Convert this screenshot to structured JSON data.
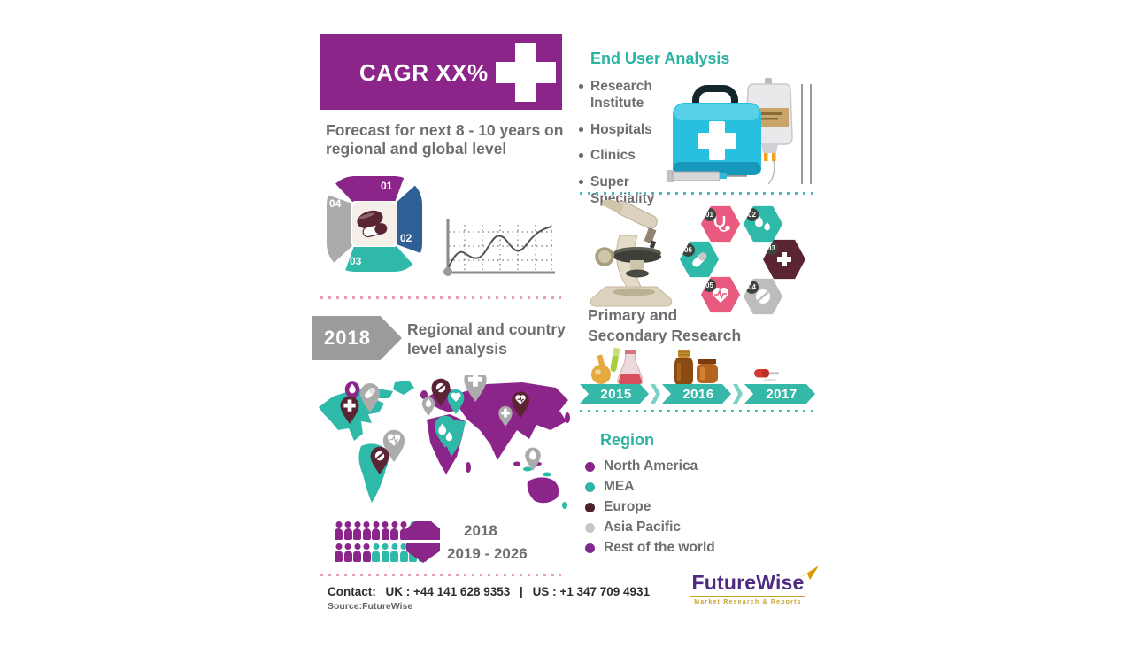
{
  "banner": {
    "text": "CAGR XX%"
  },
  "forecast": {
    "lines": [
      "Forecast for next 8 - 10  years on",
      "regional and global level"
    ]
  },
  "cycle": {
    "steps": [
      "01",
      "02",
      "03",
      "04"
    ]
  },
  "milestone": {
    "year": "2018",
    "label_lines": [
      "Regional and country",
      "level analysis"
    ]
  },
  "population": {
    "rows": [
      {
        "year": "2018",
        "purple": 8,
        "teal": 2
      },
      {
        "year": "2019 - 2026",
        "purple": 4,
        "teal": 6
      }
    ]
  },
  "contact": {
    "label": "Contact:",
    "uk": "UK : +44 141 628 9353",
    "divider": "|",
    "us": "US : +1 347 709 4931",
    "source": "Source:FutureWise"
  },
  "brand": {
    "name": "FutureWise",
    "tagline": "Market Research & Reports"
  },
  "end_user": {
    "title": "End User Analysis",
    "items": [
      "Research Institute",
      "Hospitals",
      "Clinics",
      "Super Speciality"
    ]
  },
  "research": {
    "title_lines": [
      "Primary and",
      "Secondary Research"
    ],
    "hexes": [
      {
        "num": "01",
        "icon": "stethoscope-icon",
        "color": "#E85A7E"
      },
      {
        "num": "02",
        "icon": "droplets-icon",
        "color": "#2FB9A9"
      },
      {
        "num": "03",
        "icon": "cross-icon",
        "color": "#5A2433"
      },
      {
        "num": "04",
        "icon": "tablet-icon",
        "color": "#BDBDBD"
      },
      {
        "num": "05",
        "icon": "heart-pulse-icon",
        "color": "#E85A7E"
      },
      {
        "num": "06",
        "icon": "capsule-icon",
        "color": "#2FB9A9"
      }
    ]
  },
  "timeline": {
    "years": [
      "2015",
      "2016",
      "2017"
    ]
  },
  "region": {
    "title": "Region",
    "items": [
      {
        "label": "North America",
        "color": "#8B2589"
      },
      {
        "label": "MEA",
        "color": "#2FB3A3"
      },
      {
        "label": "Europe",
        "color": "#4F1F2A"
      },
      {
        "label": "Asia Pacific",
        "color": "#C6C6C6"
      },
      {
        "label": "Rest of the world",
        "color": "#7E2A8F"
      }
    ]
  },
  "map": {
    "pin_icons": [
      "droplet-icon",
      "capsule-icon",
      "cross-icon",
      "heart-ecg-icon",
      "tablet-icon",
      "tablet-icon",
      "droplet-icon",
      "heart-icon",
      "cross-icon",
      "droplets-icon",
      "cross-icon",
      "heart-ecg-icon",
      "droplet-icon"
    ]
  },
  "colors": {
    "purple": "#8B2589",
    "teal": "#2FB9A9",
    "blue": "#2E6096",
    "maroon": "#5A2433",
    "pink": "#E85A7E",
    "gray": "#B9B9B9",
    "text_gray": "#6e6e6e",
    "heading_teal": "#2AB3A3",
    "logo_purple": "#4D2B80",
    "gold": "#C9A22A"
  }
}
